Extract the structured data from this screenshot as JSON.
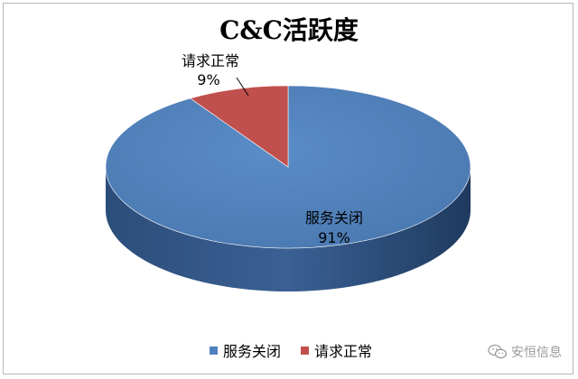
{
  "chart_data": {
    "type": "pie",
    "title": "C&C活跃度",
    "slices": [
      {
        "label": "服务关闭",
        "percent_label": "91%",
        "value": 91,
        "color": "#4f81bd"
      },
      {
        "label": "请求正常",
        "percent_label": "9%",
        "value": 9,
        "color": "#c0504d"
      }
    ],
    "legend_position": "bottom"
  },
  "watermark": {
    "text": "安恒信息",
    "icon": "wechat-icon"
  }
}
